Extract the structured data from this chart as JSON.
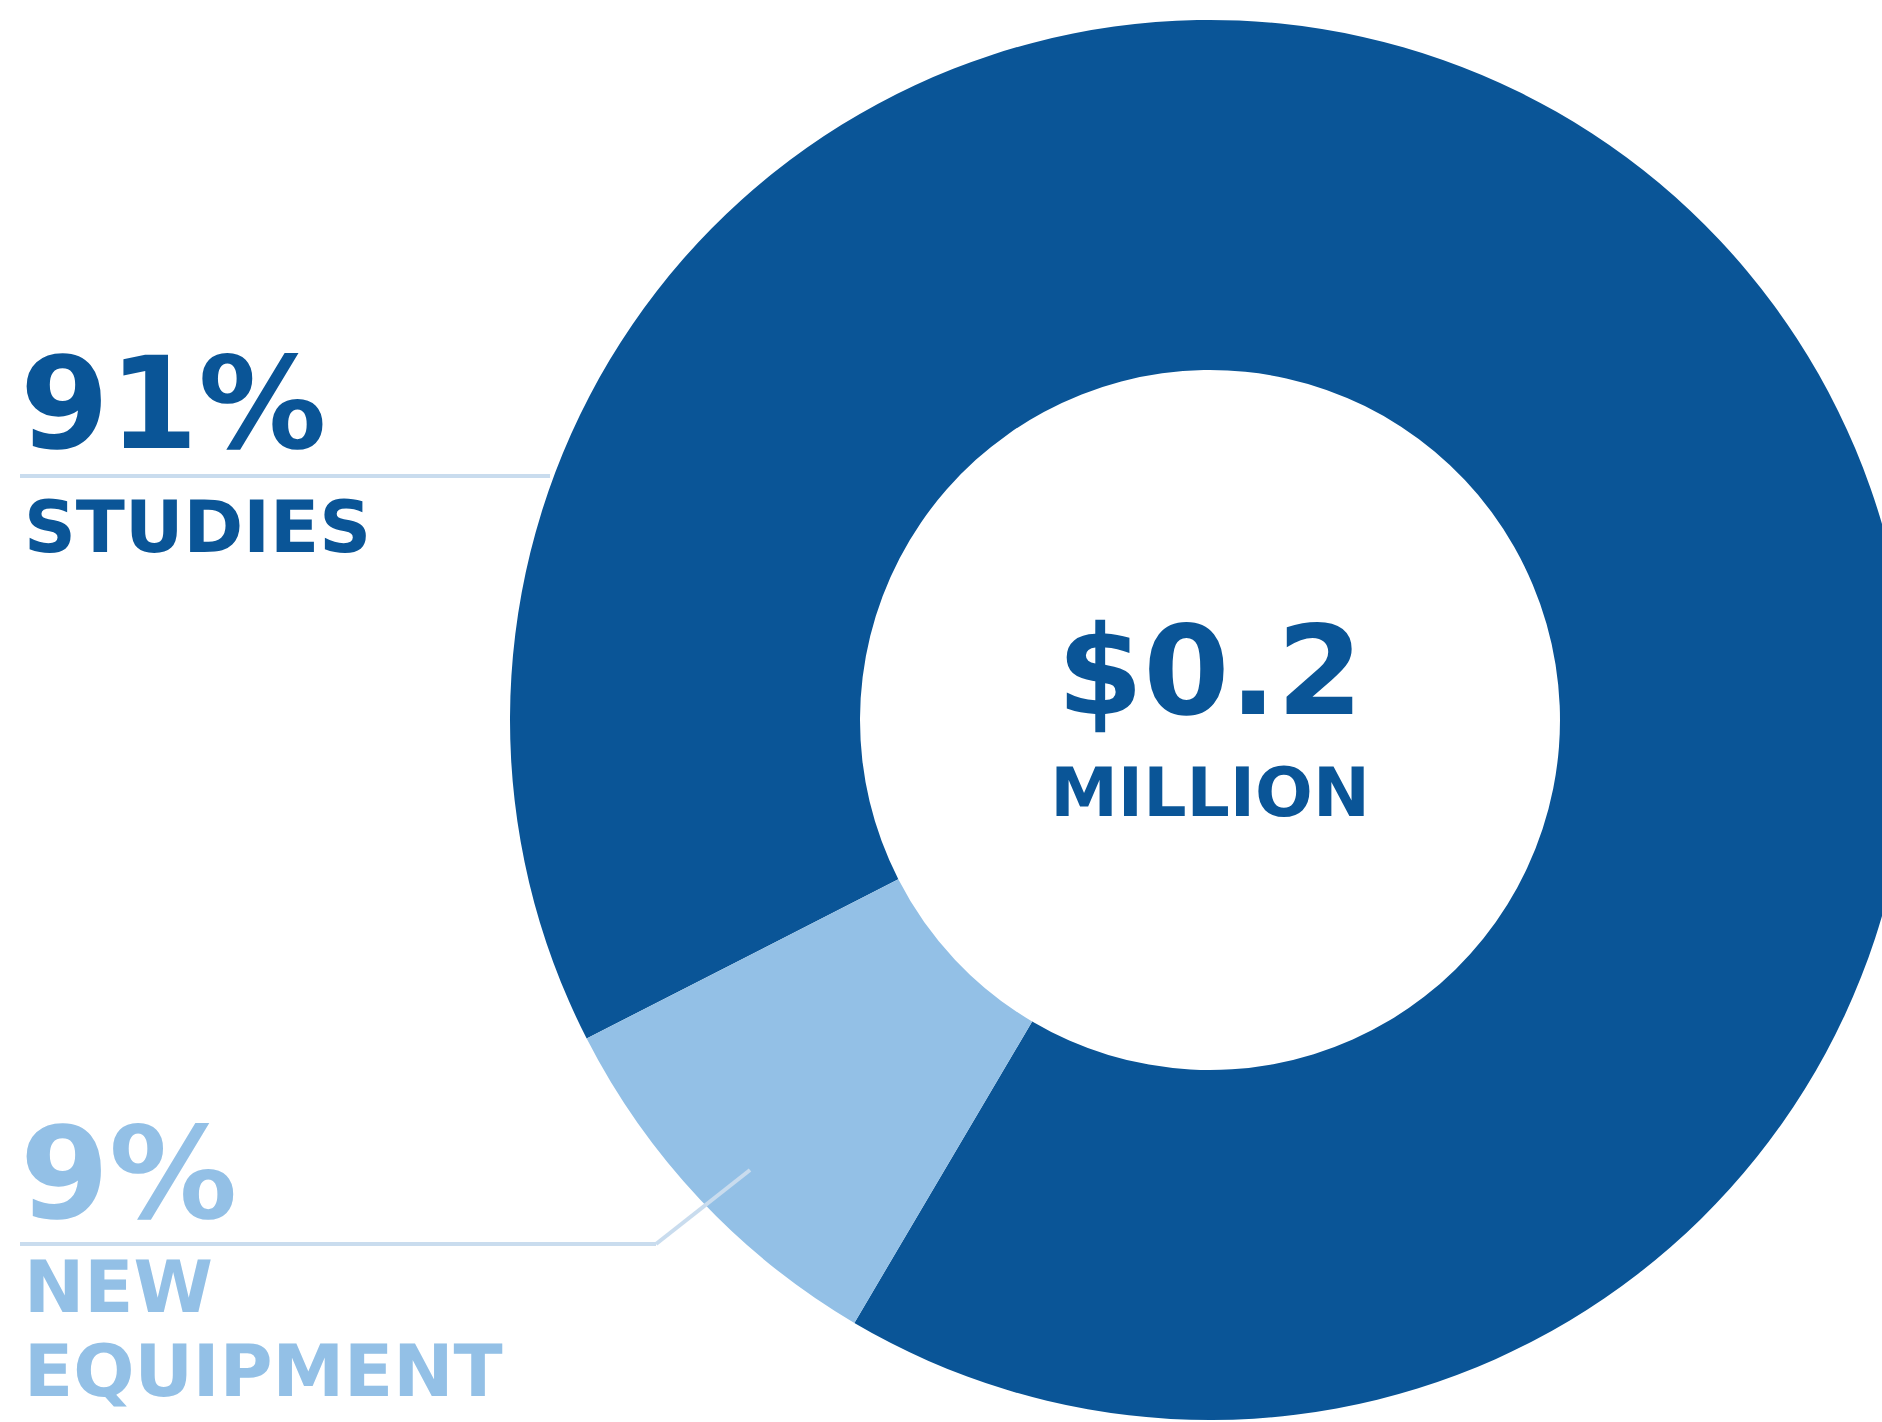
{
  "chart_data": {
    "type": "donut",
    "categories": [
      "STUDIES",
      "NEW EQUIPMENT"
    ],
    "values": [
      91,
      9
    ],
    "colors": [
      "#0a5597",
      "#93c0e6"
    ],
    "value_labels": [
      "91%",
      "9%"
    ],
    "annotations": [
      "$0.2 MILLION"
    ]
  }
}
